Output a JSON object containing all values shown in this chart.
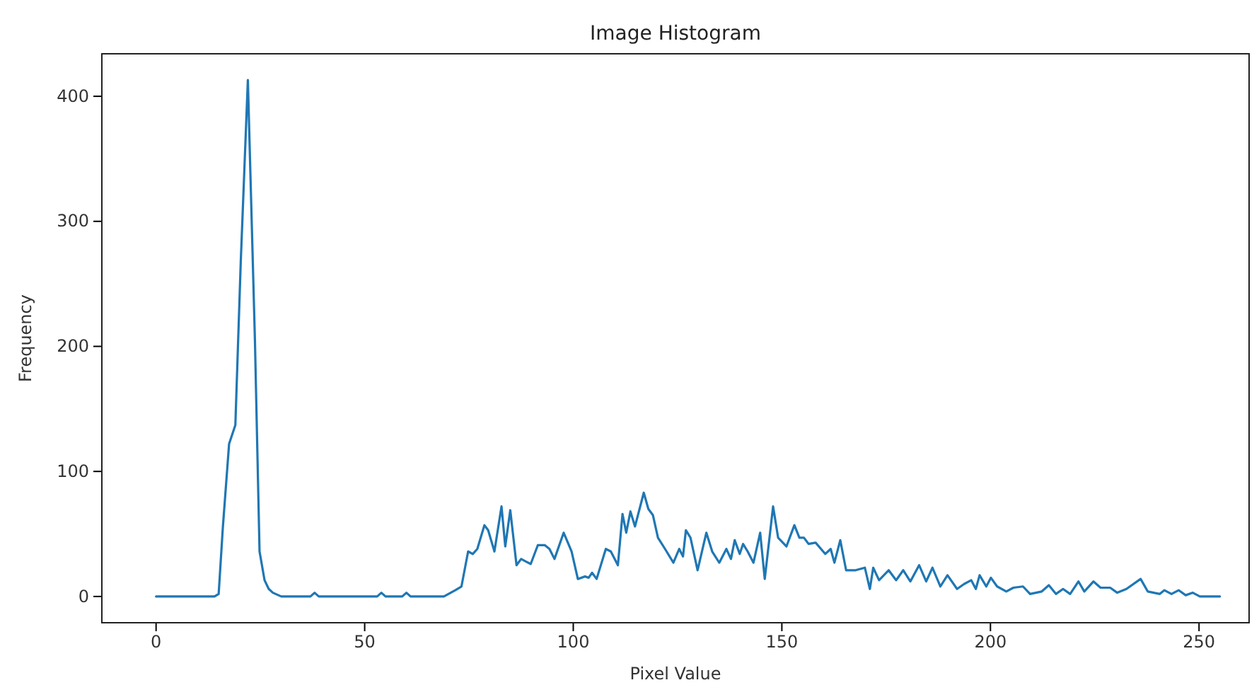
{
  "chart_data": {
    "type": "line",
    "title": "Image Histogram",
    "xlabel": "Pixel Value",
    "ylabel": "Frequency",
    "xlim": [
      -13,
      262
    ],
    "ylim": [
      -21,
      434
    ],
    "xticks": [
      0,
      50,
      100,
      150,
      200,
      250
    ],
    "yticks": [
      0,
      100,
      200,
      300,
      400
    ],
    "marker": "none",
    "line_style": "solid",
    "series": [
      {
        "color": "#1f77b4",
        "x": [
          0,
          14,
          15,
          16,
          17.5,
          19,
          20.3,
          22,
          23.7,
          24.8,
          26,
          27,
          28,
          30,
          37,
          38,
          39,
          53,
          54,
          55,
          59,
          60,
          61,
          69,
          71.7,
          73.2,
          74.8,
          75.9,
          77,
          78.7,
          79.6,
          81.1,
          82.8,
          83.7,
          84.9,
          86.4,
          87.5,
          88.6,
          89.8,
          91.5,
          93.2,
          94.3,
          95.5,
          97.7,
          99.6,
          101.1,
          102.8,
          103.7,
          104.5,
          105.6,
          107.8,
          109,
          110.7,
          111.8,
          112.7,
          113.7,
          114.8,
          116.9,
          118,
          119.1,
          120.3,
          122,
          124,
          125.4,
          126.3,
          127,
          128.1,
          129.8,
          131.9,
          133.3,
          135,
          136.7,
          137.8,
          138.7,
          139.9,
          140.7,
          141.8,
          143.2,
          144.8,
          145.9,
          147.9,
          149.1,
          151.1,
          153,
          154.2,
          155.3,
          156.4,
          158.1,
          160.4,
          161.7,
          162.6,
          164,
          165.4,
          167.7,
          169.9,
          171.1,
          171.9,
          173.3,
          175.6,
          177.4,
          179.1,
          180.8,
          182.9,
          184.6,
          186.1,
          188,
          189.7,
          192,
          193.7,
          195.4,
          196.5,
          197.4,
          199,
          200.1,
          201.6,
          203.8,
          205.5,
          207.8,
          209.5,
          212.3,
          214,
          215.7,
          217.4,
          219.1,
          221.1,
          222.5,
          224.7,
          226.4,
          228.7,
          230.4,
          232.6,
          236,
          237.7,
          240.6,
          241.7,
          243.4,
          245.1,
          246.8,
          248.5,
          250.2,
          255
        ],
        "values": [
          0,
          0,
          2,
          55,
          122,
          137,
          268,
          413,
          204,
          36,
          13,
          6,
          3,
          0,
          0,
          3,
          0,
          0,
          3,
          0,
          0,
          3,
          0,
          0,
          5,
          8,
          36,
          34,
          38,
          57,
          53,
          36,
          72,
          40,
          69,
          25,
          30,
          28,
          26,
          41,
          41,
          38,
          30,
          51,
          36,
          14,
          16,
          15,
          19,
          14,
          38,
          36,
          25,
          66,
          51,
          68,
          56,
          83,
          70,
          65,
          47,
          38,
          27,
          38,
          32,
          53,
          47,
          21,
          51,
          36,
          27,
          38,
          30,
          45,
          34,
          42,
          36,
          27,
          51,
          14,
          72,
          47,
          40,
          57,
          47,
          47,
          42,
          43,
          34,
          38,
          27,
          45,
          21,
          21,
          23,
          6,
          23,
          13,
          21,
          13,
          21,
          12,
          25,
          12,
          23,
          8,
          17,
          6,
          10,
          13,
          6,
          17,
          8,
          15,
          8,
          4,
          7,
          8,
          2,
          4,
          9,
          2,
          6,
          2,
          12,
          4,
          12,
          7,
          7,
          3,
          6,
          14,
          4,
          2,
          5,
          2,
          5,
          1,
          3,
          0,
          0
        ]
      }
    ]
  }
}
